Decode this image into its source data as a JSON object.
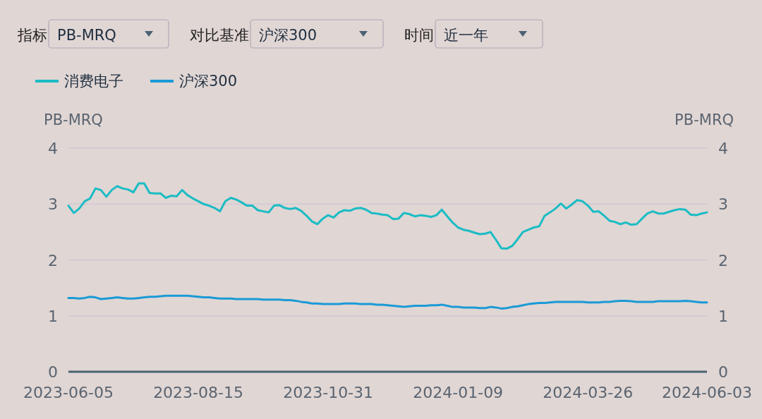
{
  "chart_data": {
    "type": "line",
    "ylabel": "PB-MRQ",
    "y2label": "PB-MRQ",
    "annotations": [
      "指标",
      "PB-MRQ",
      "对比基准",
      "沪深300",
      "时间",
      "近一年"
    ],
    "categories": [
      "2023-06-05",
      null,
      null,
      null,
      null,
      null,
      null,
      null,
      null,
      null,
      null,
      null,
      null,
      null,
      null,
      null,
      null,
      null,
      null,
      null,
      null,
      null,
      null,
      null,
      "2023-08-15",
      null,
      null,
      null,
      null,
      null,
      null,
      null,
      null,
      null,
      null,
      null,
      null,
      null,
      null,
      null,
      null,
      null,
      null,
      null,
      null,
      null,
      null,
      null,
      "2023-10-31",
      null,
      null,
      null,
      null,
      null,
      null,
      null,
      null,
      null,
      null,
      null,
      null,
      null,
      null,
      null,
      null,
      null,
      null,
      null,
      null,
      null,
      null,
      null,
      "2024-01-09",
      null,
      null,
      null,
      null,
      null,
      null,
      null,
      null,
      null,
      null,
      null,
      null,
      null,
      null,
      null,
      null,
      null,
      null,
      null,
      null,
      null,
      null,
      null,
      "2024-03-26",
      null,
      null,
      null,
      null,
      null,
      null,
      null,
      null,
      null,
      null,
      null,
      null,
      null,
      null,
      null,
      null,
      null,
      null,
      null,
      null,
      null,
      "2024-06-03"
    ],
    "ylim": [
      0,
      4
    ],
    "yticks": [
      0,
      1,
      2,
      3,
      4
    ],
    "y2lim": [
      0,
      4
    ],
    "y2ticks": [
      0,
      1,
      2,
      3,
      4
    ],
    "grid": "y",
    "legend": "top left",
    "marker": "none",
    "line_style": "solid",
    "series": [
      {
        "name": "消费电子",
        "color": "#1bbcc4",
        "values": [
          2.97,
          2.84,
          2.92,
          3.05,
          3.1,
          3.28,
          3.25,
          3.13,
          3.25,
          3.32,
          3.28,
          3.26,
          3.21,
          3.37,
          3.37,
          3.2,
          3.19,
          3.19,
          3.11,
          3.15,
          3.14,
          3.25,
          3.16,
          3.1,
          3.05,
          3.0,
          2.97,
          2.93,
          2.87,
          3.05,
          3.11,
          3.08,
          3.03,
          2.97,
          2.97,
          2.89,
          2.87,
          2.85,
          2.97,
          2.98,
          2.93,
          2.91,
          2.93,
          2.88,
          2.79,
          2.69,
          2.64,
          2.74,
          2.8,
          2.76,
          2.85,
          2.89,
          2.88,
          2.92,
          2.93,
          2.9,
          2.84,
          2.83,
          2.81,
          2.8,
          2.73,
          2.74,
          2.84,
          2.82,
          2.78,
          2.8,
          2.79,
          2.77,
          2.8,
          2.9,
          2.78,
          2.67,
          2.58,
          2.54,
          2.52,
          2.49,
          2.46,
          2.47,
          2.5,
          2.36,
          2.21,
          2.2,
          2.25,
          2.37,
          2.5,
          2.54,
          2.58,
          2.6,
          2.79,
          2.85,
          2.92,
          3.01,
          2.92,
          2.99,
          3.07,
          3.05,
          2.97,
          2.86,
          2.87,
          2.79,
          2.7,
          2.68,
          2.64,
          2.67,
          2.63,
          2.64,
          2.74,
          2.83,
          2.87,
          2.83,
          2.83,
          2.86,
          2.89,
          2.91,
          2.9,
          2.81,
          2.8,
          2.83,
          2.85
        ]
      },
      {
        "name": "沪深300",
        "color": "#1a9ad6",
        "values": [
          1.32,
          1.32,
          1.31,
          1.32,
          1.34,
          1.33,
          1.3,
          1.31,
          1.32,
          1.33,
          1.32,
          1.31,
          1.31,
          1.32,
          1.33,
          1.34,
          1.34,
          1.35,
          1.36,
          1.36,
          1.36,
          1.36,
          1.36,
          1.35,
          1.34,
          1.33,
          1.33,
          1.32,
          1.31,
          1.31,
          1.31,
          1.3,
          1.3,
          1.3,
          1.3,
          1.3,
          1.29,
          1.29,
          1.29,
          1.29,
          1.28,
          1.28,
          1.27,
          1.25,
          1.24,
          1.22,
          1.22,
          1.21,
          1.21,
          1.21,
          1.21,
          1.22,
          1.22,
          1.22,
          1.21,
          1.21,
          1.21,
          1.2,
          1.2,
          1.19,
          1.18,
          1.17,
          1.16,
          1.17,
          1.18,
          1.18,
          1.18,
          1.19,
          1.19,
          1.2,
          1.18,
          1.16,
          1.16,
          1.15,
          1.15,
          1.15,
          1.14,
          1.14,
          1.16,
          1.15,
          1.13,
          1.14,
          1.16,
          1.17,
          1.19,
          1.21,
          1.22,
          1.23,
          1.23,
          1.24,
          1.25,
          1.25,
          1.25,
          1.25,
          1.25,
          1.25,
          1.24,
          1.24,
          1.24,
          1.25,
          1.25,
          1.26,
          1.27,
          1.27,
          1.26,
          1.25,
          1.25,
          1.25,
          1.25,
          1.26,
          1.26,
          1.26,
          1.26,
          1.26,
          1.27,
          1.26,
          1.25,
          1.24,
          1.24
        ]
      }
    ]
  }
}
